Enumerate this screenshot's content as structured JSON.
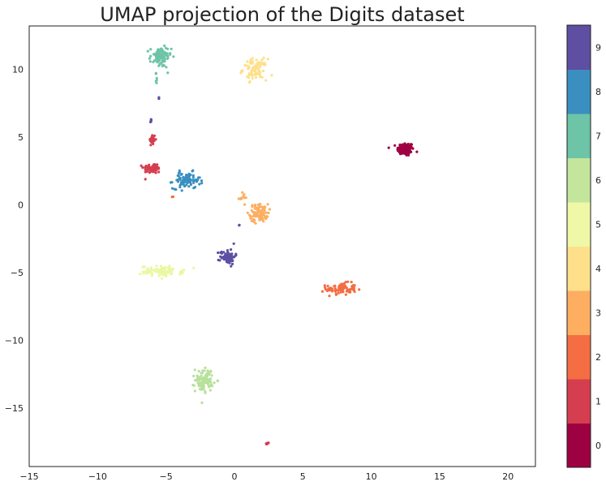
{
  "chart_data": {
    "type": "scatter",
    "title": "UMAP projection of the Digits dataset",
    "xlabel": "",
    "ylabel": "",
    "xlim": [
      -15,
      22
    ],
    "ylim": [
      -19.3,
      13.2
    ],
    "x_ticks": [
      "−15",
      "−10",
      "−5",
      "0",
      "5",
      "10",
      "15",
      "20"
    ],
    "y_ticks": [
      "−15",
      "−10",
      "−5",
      "0",
      "5",
      "10"
    ],
    "grid": false,
    "colormap": "Spectral",
    "colorbar": {
      "labels": [
        "0",
        "1",
        "2",
        "3",
        "4",
        "5",
        "6",
        "7",
        "8",
        "9"
      ],
      "colors": [
        "#9e0142",
        "#d53e4f",
        "#f46d43",
        "#fdae61",
        "#fee08b",
        "#ffffbf",
        "#e6f598",
        "#abdda4",
        "#66c2a5",
        "#3288bd",
        "#5e4fa2"
      ]
    },
    "clusters": [
      {
        "label": "0",
        "color": "#9e0142",
        "center": [
          12.5,
          4.1
        ],
        "spread": [
          0.55,
          0.45
        ],
        "count": 110
      },
      {
        "label": "1",
        "color": "#d53e4f",
        "center": [
          -6.0,
          4.8
        ],
        "spread": [
          0.2,
          0.4
        ],
        "count": 25
      },
      {
        "label": "1",
        "color": "#d53e4f",
        "center": [
          -6.0,
          2.7
        ],
        "spread": [
          0.6,
          0.35
        ],
        "count": 55
      },
      {
        "label": "1",
        "color": "#d53e4f",
        "center": [
          2.4,
          -17.6
        ],
        "spread": [
          0.1,
          0.08
        ],
        "count": 5
      },
      {
        "label": "2",
        "color": "#f46d43",
        "center": [
          7.8,
          -6.2
        ],
        "spread": [
          1.0,
          0.4
        ],
        "count": 90
      },
      {
        "label": "2",
        "color": "#f46d43",
        "center": [
          -4.5,
          0.6
        ],
        "spread": [
          0.05,
          0.05
        ],
        "count": 2
      },
      {
        "label": "3",
        "color": "#fdae61",
        "center": [
          1.8,
          -0.6
        ],
        "spread": [
          0.6,
          0.6
        ],
        "count": 90
      },
      {
        "label": "3",
        "color": "#fdae61",
        "center": [
          0.6,
          0.5
        ],
        "spread": [
          0.3,
          0.3
        ],
        "count": 12
      },
      {
        "label": "4",
        "color": "#fee08b",
        "center": [
          1.5,
          10.0
        ],
        "spread": [
          0.8,
          0.7
        ],
        "count": 90
      },
      {
        "label": "5",
        "color": "#ebf7a0",
        "center": [
          -5.3,
          -4.9
        ],
        "spread": [
          1.4,
          0.35
        ],
        "count": 80
      },
      {
        "label": "6",
        "color": "#b7e19b",
        "center": [
          -2.2,
          -12.9
        ],
        "spread": [
          0.6,
          0.8
        ],
        "count": 90
      },
      {
        "label": "7",
        "color": "#6dc4a6",
        "center": [
          -5.4,
          10.9
        ],
        "spread": [
          0.7,
          0.7
        ],
        "count": 85
      },
      {
        "label": "7",
        "color": "#6dc4a6",
        "center": [
          -5.7,
          9.2
        ],
        "spread": [
          0.1,
          0.5
        ],
        "count": 6
      },
      {
        "label": "8",
        "color": "#3a8fc0",
        "center": [
          -3.5,
          1.8
        ],
        "spread": [
          0.9,
          0.55
        ],
        "count": 85
      },
      {
        "label": "9",
        "color": "#5e4fa2",
        "center": [
          -0.5,
          -3.8
        ],
        "spread": [
          0.5,
          0.5
        ],
        "count": 80
      },
      {
        "label": "9",
        "color": "#5e4fa2",
        "center": [
          -6.1,
          6.2
        ],
        "spread": [
          0.05,
          0.15
        ],
        "count": 6
      },
      {
        "label": "9",
        "color": "#5e4fa2",
        "center": [
          -5.5,
          7.9
        ],
        "spread": [
          0.05,
          0.05
        ],
        "count": 2
      },
      {
        "label": "9",
        "color": "#5e4fa2",
        "center": [
          0.4,
          -1.5
        ],
        "spread": [
          0.05,
          0.05
        ],
        "count": 2
      }
    ]
  }
}
